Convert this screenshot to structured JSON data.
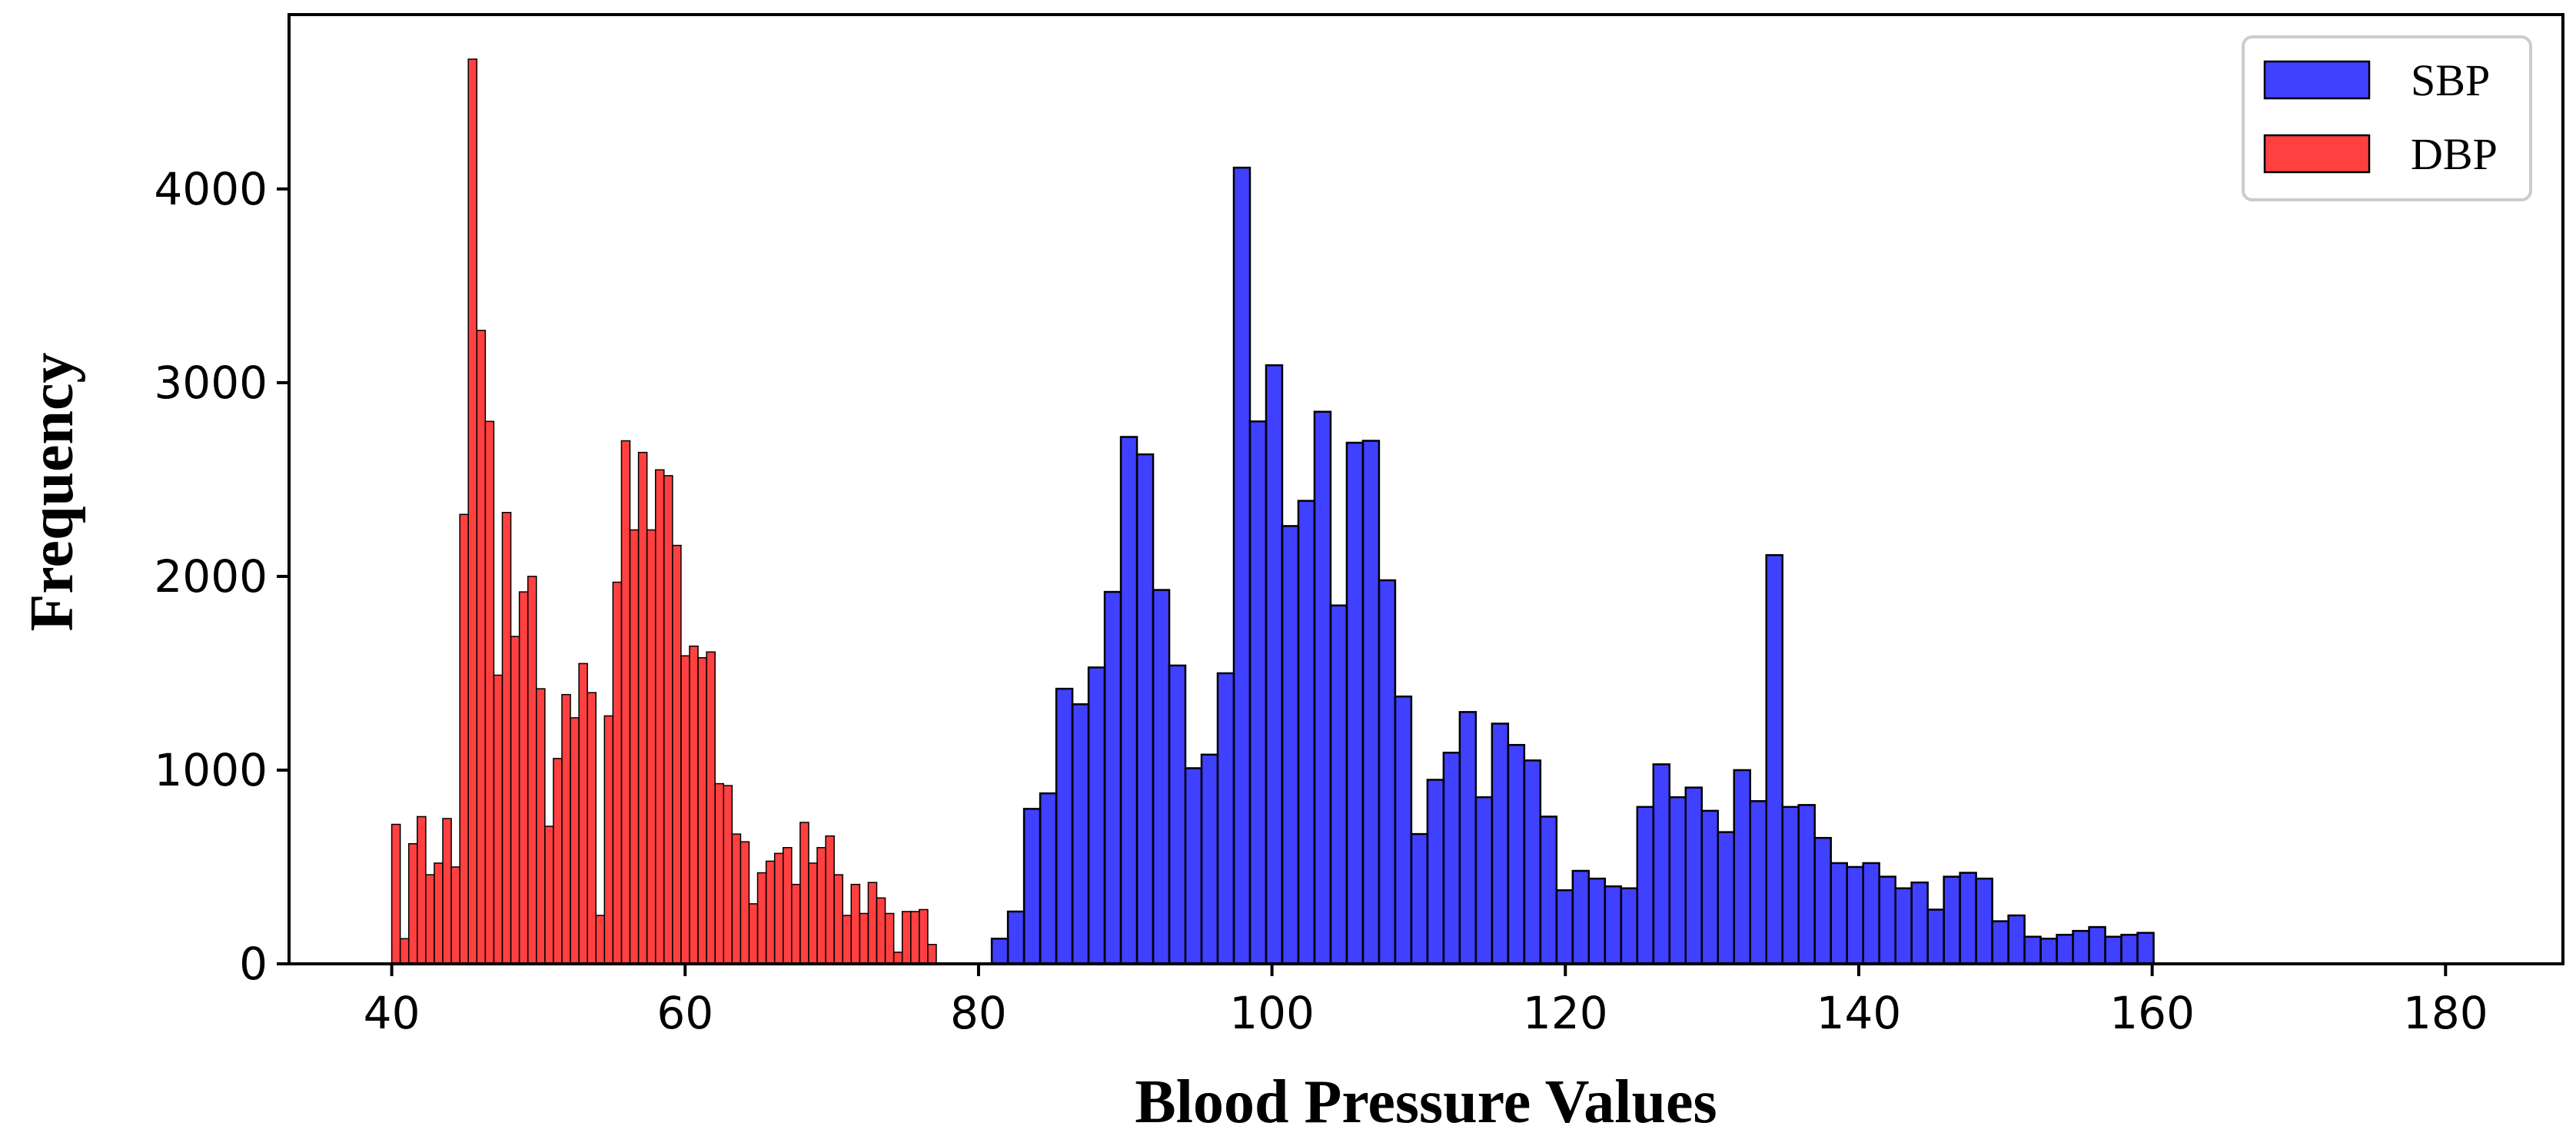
{
  "chart_data": {
    "type": "bar",
    "title": "",
    "xlabel": "Blood Pressure Values",
    "ylabel": "Frequency",
    "xlim": [
      33,
      188
    ],
    "ylim": [
      0,
      4900
    ],
    "grid": false,
    "legend_position": "top-right",
    "x_ticks": [
      40,
      60,
      80,
      100,
      120,
      140,
      160,
      180
    ],
    "y_ticks": [
      0,
      1000,
      2000,
      3000,
      4000
    ],
    "series": [
      {
        "name": "SBP",
        "color": "#0000ff",
        "opacity": 0.75,
        "bin_start": 80.9,
        "bin_width": 1.1,
        "values": [
          130,
          270,
          800,
          880,
          1420,
          1340,
          1530,
          1920,
          2720,
          2630,
          1930,
          1540,
          1010,
          1080,
          1500,
          4110,
          2800,
          3090,
          2260,
          2390,
          2850,
          1850,
          2690,
          2700,
          1980,
          1380,
          670,
          950,
          1090,
          1300,
          860,
          1240,
          1130,
          1050,
          760,
          380,
          480,
          440,
          400,
          390,
          810,
          1030,
          860,
          910,
          790,
          680,
          1000,
          840,
          2110,
          810,
          820,
          650,
          520,
          500,
          520,
          450,
          390,
          420,
          280,
          450,
          470,
          440,
          220,
          250,
          140,
          130,
          150,
          170,
          190,
          140,
          150,
          160
        ]
      },
      {
        "name": "DBP",
        "color": "#ff0000",
        "opacity": 0.75,
        "bin_start": 40,
        "bin_width": 0.58,
        "values": [
          720,
          130,
          620,
          760,
          460,
          520,
          750,
          500,
          2320,
          4670,
          3270,
          2800,
          1490,
          2330,
          1690,
          1920,
          2000,
          1420,
          710,
          1060,
          1390,
          1270,
          1550,
          1400,
          250,
          1280,
          1970,
          2700,
          2240,
          2640,
          2240,
          2550,
          2520,
          2160,
          1590,
          1640,
          1580,
          1610,
          930,
          920,
          670,
          630,
          310,
          470,
          530,
          570,
          600,
          410,
          730,
          520,
          600,
          660,
          460,
          250,
          410,
          260,
          420,
          340,
          260,
          60,
          270,
          270,
          280,
          100
        ]
      }
    ]
  }
}
